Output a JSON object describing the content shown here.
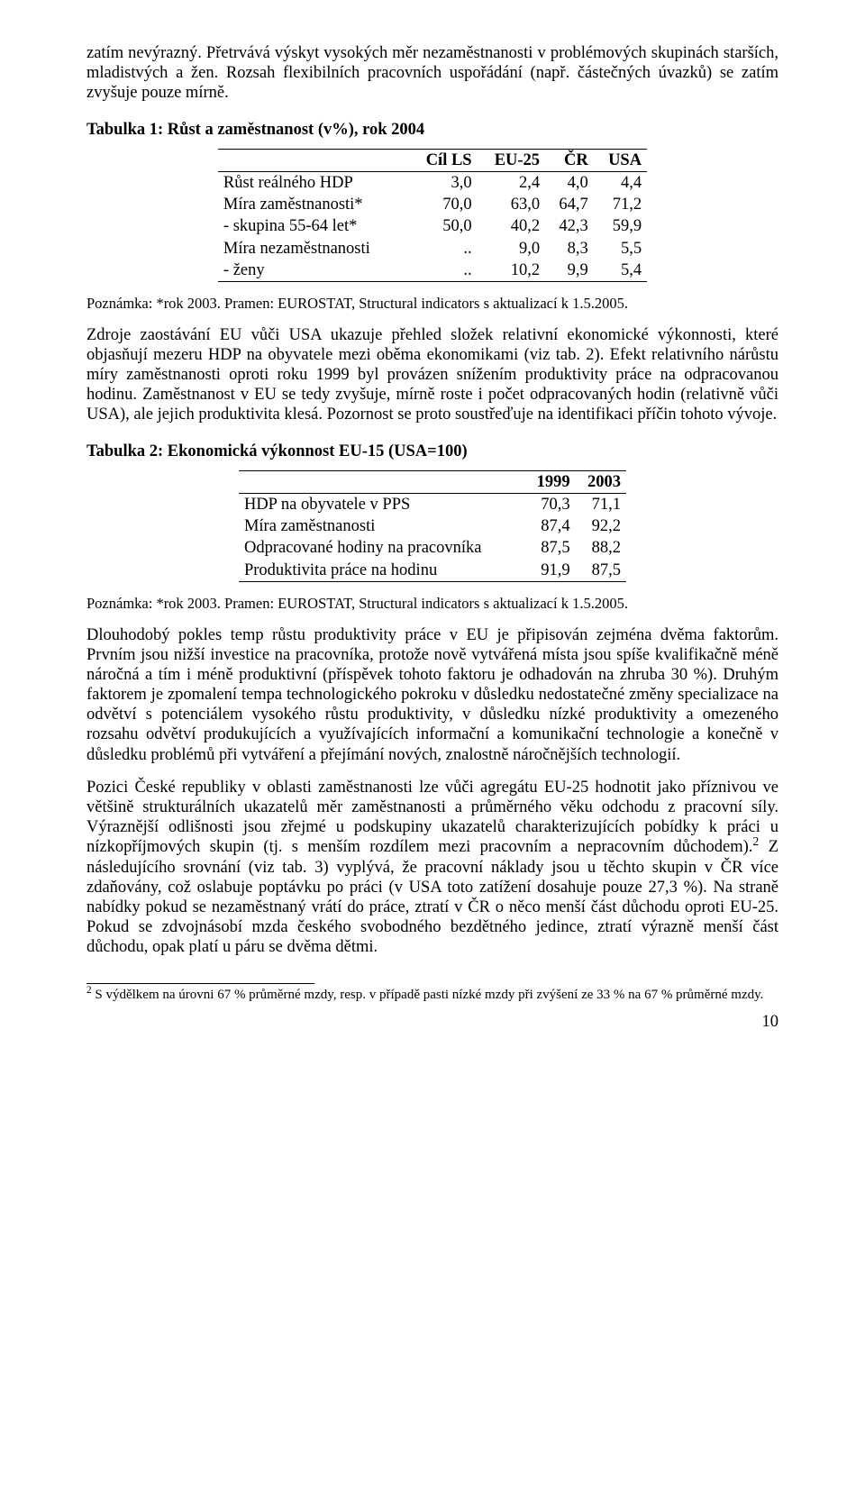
{
  "para1": "zatím nevýrazný. Přetrvává výskyt vysokých měr nezaměstnanosti v problémových skupinách starších, mladistvých a žen. Rozsah flexibilních pracovních uspořádání (např. částečných úvazků) se zatím zvyšuje pouze mírně.",
  "table1": {
    "title": "Tabulka 1: Růst a zaměstnanost (v%), rok 2004",
    "cols": [
      "",
      "Cíl LS",
      "EU-25",
      "ČR",
      "USA"
    ],
    "rows": [
      [
        "Růst reálného HDP",
        "3,0",
        "2,4",
        "4,0",
        "4,4"
      ],
      [
        "Míra zaměstnanosti*",
        "70,0",
        "63,0",
        "64,7",
        "71,2"
      ],
      [
        "- skupina 55-64 let*",
        "50,0",
        "40,2",
        "42,3",
        "59,9"
      ],
      [
        "Míra nezaměstnanosti",
        "..",
        "9,0",
        "8,3",
        "5,5"
      ],
      [
        "- ženy",
        "..",
        "10,2",
        "9,9",
        "5,4"
      ]
    ]
  },
  "note1": "Poznámka: *rok 2003. Pramen: EUROSTAT, Structural indicators s aktualizací k 1.5.2005.",
  "para2": "Zdroje zaostávání EU vůči USA ukazuje přehled složek relativní ekonomické výkonnosti, které objasňují mezeru HDP na obyvatele mezi oběma ekonomikami (viz tab. 2). Efekt relativního nárůstu míry zaměstnanosti oproti roku 1999 byl provázen snížením produktivity práce na odpracovanou hodinu. Zaměstnanost v EU se tedy zvyšuje, mírně roste i počet odpracovaných hodin (relativně vůči USA), ale jejich produktivita klesá. Pozornost se proto soustřeďuje na identifikaci příčin tohoto vývoje.",
  "table2": {
    "title": "Tabulka 2: Ekonomická výkonnost EU-15 (USA=100)",
    "cols": [
      "",
      "1999",
      "2003"
    ],
    "rows": [
      [
        "HDP na obyvatele v PPS",
        "70,3",
        "71,1"
      ],
      [
        "Míra zaměstnanosti",
        "87,4",
        "92,2"
      ],
      [
        "Odpracované hodiny na pracovníka",
        "87,5",
        "88,2"
      ],
      [
        "Produktivita práce na hodinu",
        "91,9",
        "87,5"
      ]
    ]
  },
  "note2": "Poznámka: *rok 2003. Pramen: EUROSTAT, Structural indicators s aktualizací k 1.5.2005.",
  "para3": "Dlouhodobý pokles temp růstu produktivity práce v EU je připisován zejména dvěma faktorům. Prvním jsou nižší investice na pracovníka, protože nově vytvářená místa jsou spíše kvalifikačně méně náročná a tím i méně produktivní (příspěvek tohoto faktoru je odhadován na zhruba 30 %). Druhým faktorem je  zpomalení tempa technologického pokroku v důsledku nedostatečné změny specializace na odvětví s potenciálem vysokého růstu produktivity, v důsledku nízké produktivity a omezeného rozsahu odvětví produkujících a využívajících informační a komunikační technologie a konečně v důsledku problémů při vytváření a přejímání nových, znalostně náročnějších technologií.",
  "para4a": "Pozici České republiky v oblasti zaměstnanosti lze vůči agregátu EU-25 hodnotit jako příznivou ve většině strukturálních ukazatelů měr zaměstnanosti a průměrného věku odchodu z pracovní síly. Výraznější odlišnosti jsou zřejmé u podskupiny ukazatelů charakterizujících pobídky k práci u nízkopříjmových skupin (tj. s menším rozdílem mezi pracovním a nepracovním důchodem).",
  "para4b": " Z následujícího srovnání (viz tab. 3) vyplývá, že pracovní náklady jsou u těchto skupin v ČR více zdaňovány, což oslabuje poptávku po práci (v USA toto zatížení dosahuje pouze 27,3 %). Na straně nabídky pokud se nezaměstnaný vrátí do práce, ztratí v ČR o něco menší část důchodu oproti EU-25. Pokud se zdvojnásobí mzda českého svobodného bezdětného jedince, ztratí výrazně menší část důchodu, opak platí u páru se dvěma dětmi.",
  "footnote_marker": "2",
  "footnote": " S výdělkem na úrovni 67 % průměrné mzdy, resp. v případě pasti nízké mzdy při zvýšení ze 33 % na 67 % průměrné mzdy.",
  "pagenum": "10"
}
